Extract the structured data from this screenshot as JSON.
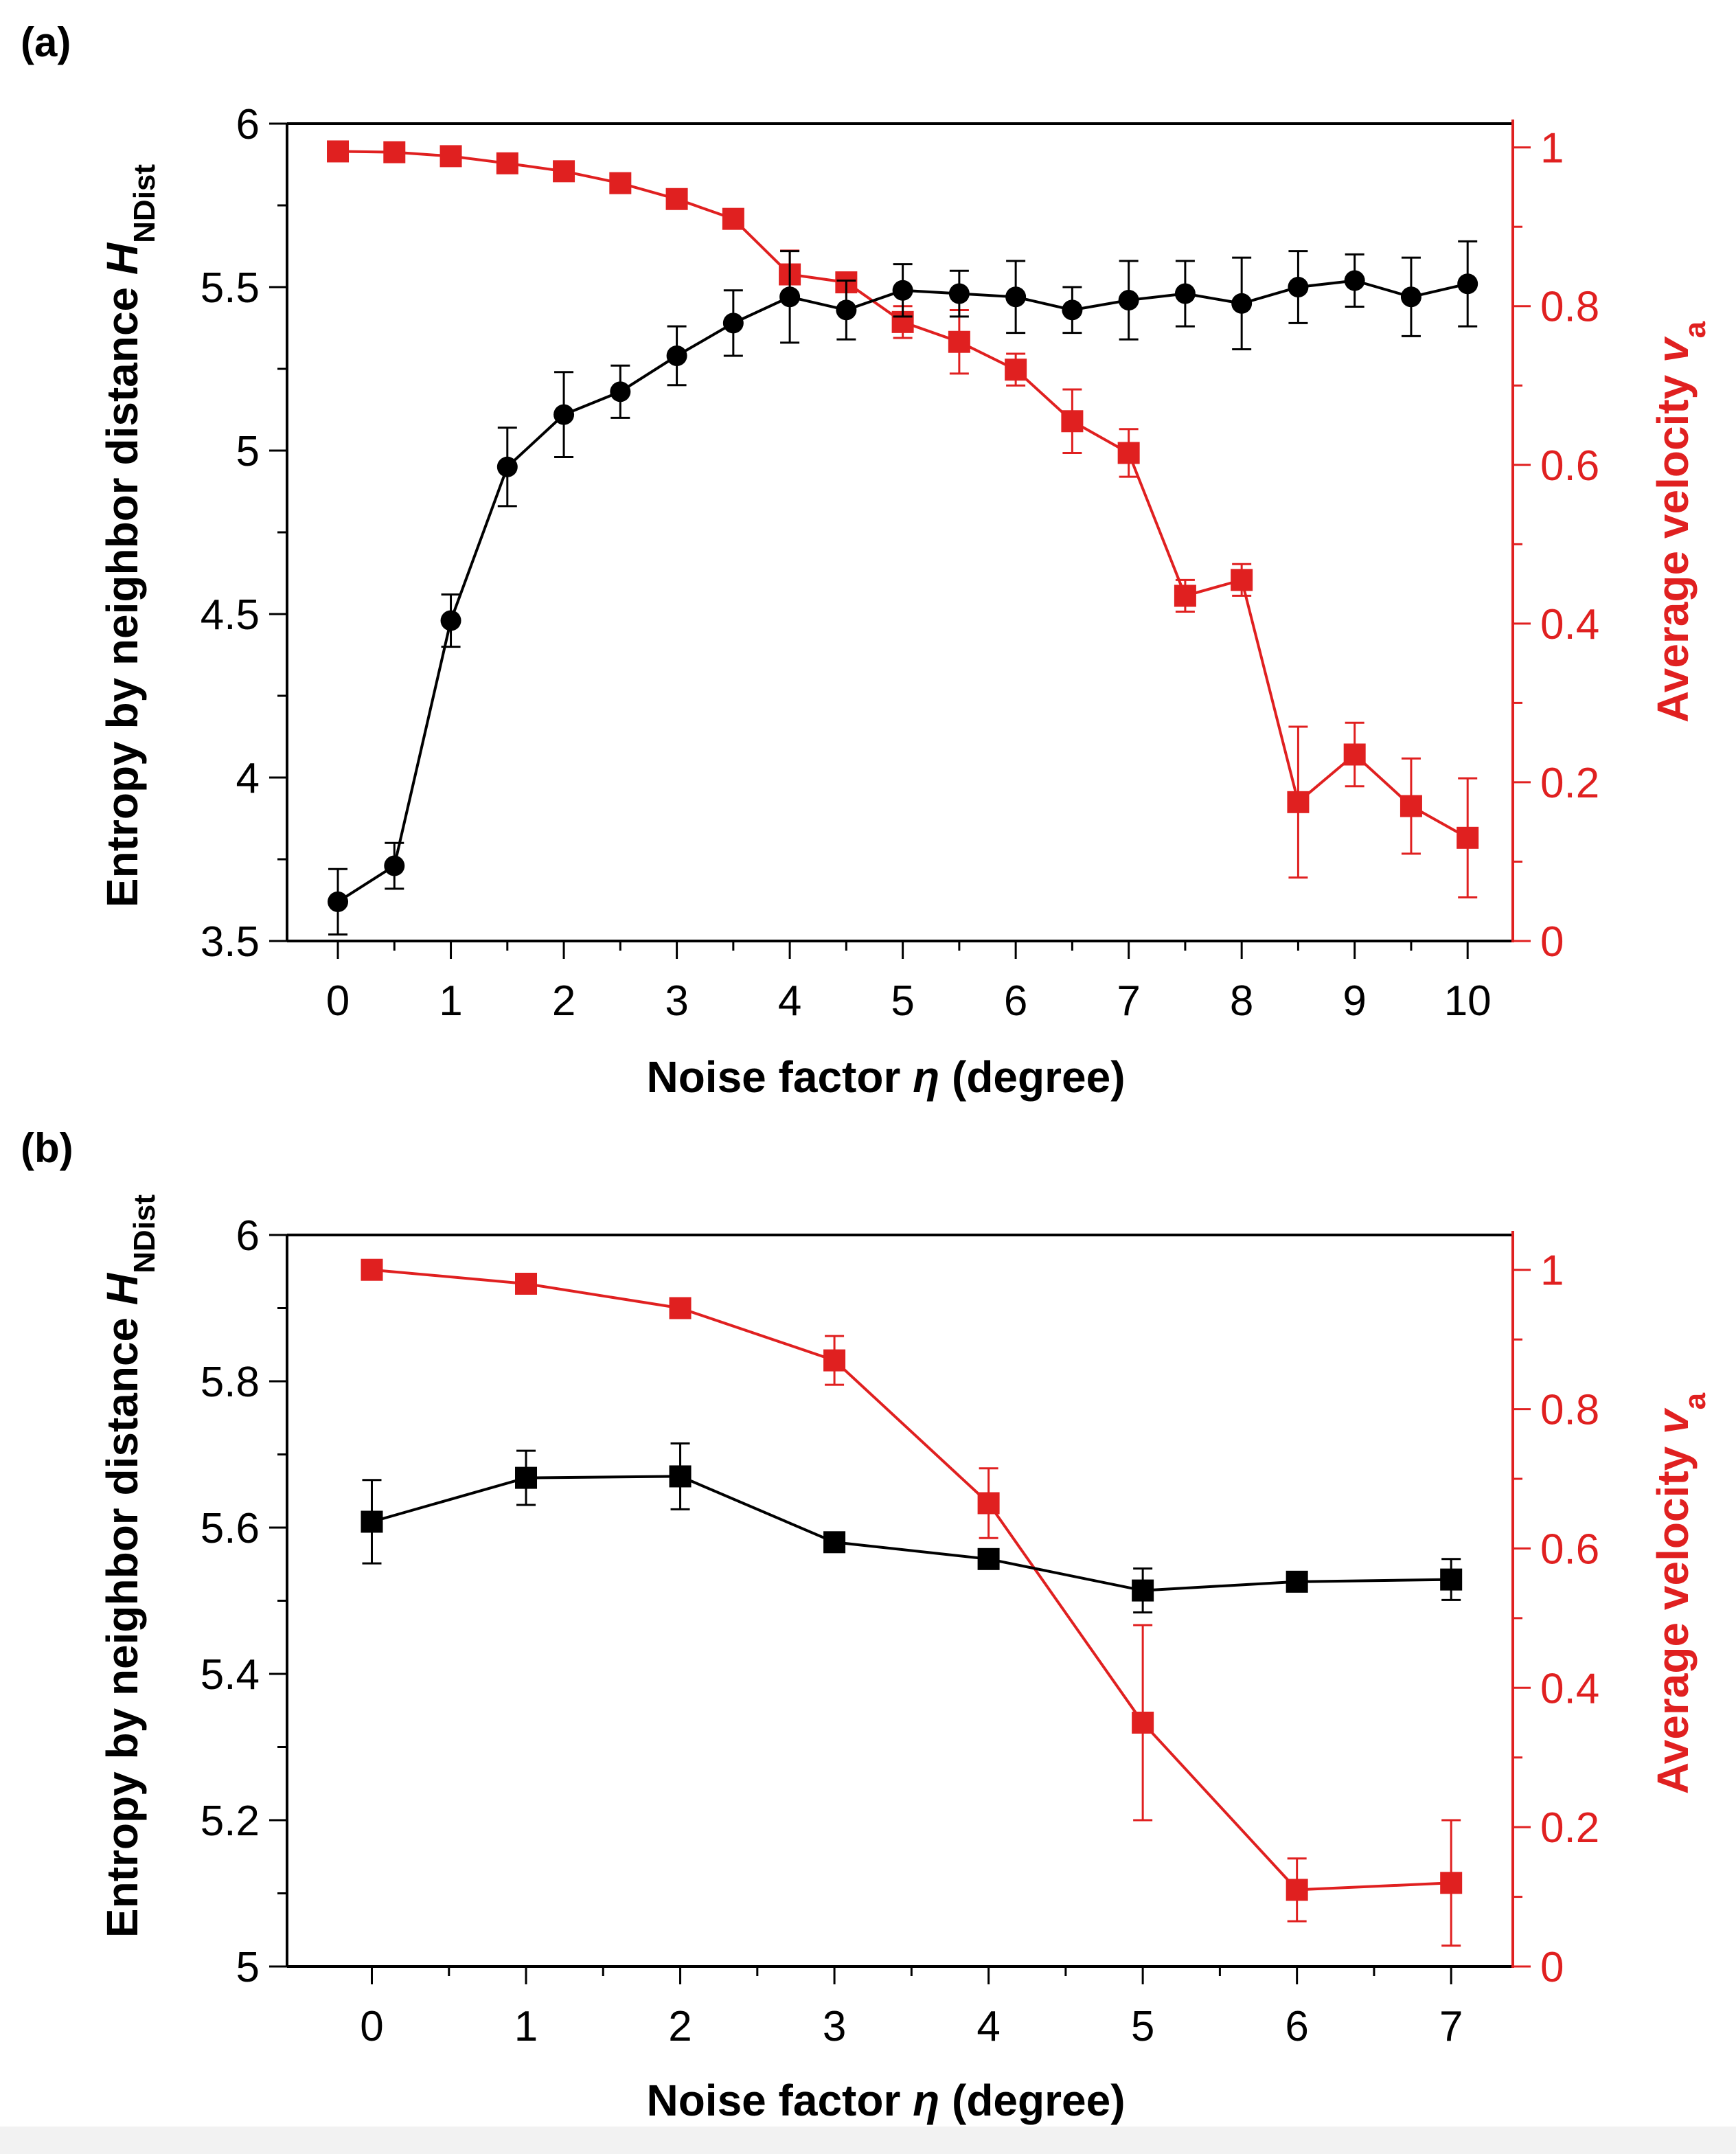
{
  "colors": {
    "left": "#000000",
    "right": "#e02020",
    "axis": "#000000"
  },
  "chart_data": [
    {
      "panel": "(a)",
      "type": "line",
      "xlabel": {
        "prefix": "Noise factor ",
        "symbol": "η",
        "suffix": " (degree)"
      },
      "ylabel": {
        "prefix": "Entropy by neighbor distance ",
        "symbol": "H",
        "sub": "NDist"
      },
      "y2label": {
        "prefix": "Average velocity ",
        "symbol": "v",
        "sub": "a"
      },
      "xlim": [
        -0.45,
        10.4
      ],
      "ylim": [
        3.5,
        6.0
      ],
      "y2lim": [
        0,
        1.03
      ],
      "xticks": [
        0,
        1,
        2,
        3,
        4,
        5,
        6,
        7,
        8,
        9,
        10
      ],
      "xtick_labels": [
        "0",
        "1",
        "2",
        "3",
        "4",
        "5",
        "6",
        "7",
        "8",
        "9",
        "10"
      ],
      "xminor": [
        0.5,
        1.5,
        2.5,
        3.5,
        4.5,
        5.5,
        6.5,
        7.5,
        8.5,
        9.5
      ],
      "yticks": [
        3.5,
        4,
        4.5,
        5,
        5.5,
        6
      ],
      "ytick_labels": [
        "3.5",
        "4",
        "4.5",
        "5",
        "5.5",
        "6"
      ],
      "yminor": [
        3.75,
        4.25,
        4.75,
        5.25,
        5.75
      ],
      "y2ticks": [
        0,
        0.2,
        0.4,
        0.6,
        0.8,
        1
      ],
      "y2tick_labels": [
        "0",
        "0.2",
        "0.4",
        "0.6",
        "0.8",
        "1"
      ],
      "y2minor": [
        0.1,
        0.3,
        0.5,
        0.7,
        0.9
      ],
      "series": [
        {
          "name": "Entropy",
          "axis": "left",
          "marker": "circle",
          "x": [
            0,
            0.5,
            1,
            1.5,
            2,
            2.5,
            3,
            3.5,
            4,
            4.5,
            5,
            5.5,
            6,
            6.5,
            7,
            7.5,
            8,
            8.5,
            9,
            9.5,
            10
          ],
          "y": [
            3.62,
            3.73,
            4.48,
            4.95,
            5.11,
            5.18,
            5.29,
            5.39,
            5.47,
            5.43,
            5.49,
            5.48,
            5.47,
            5.43,
            5.46,
            5.48,
            5.45,
            5.5,
            5.52,
            5.47,
            5.51
          ],
          "err": [
            0.1,
            0.07,
            0.08,
            0.12,
            0.13,
            0.08,
            0.09,
            0.1,
            0.14,
            0.09,
            0.08,
            0.07,
            0.11,
            0.07,
            0.12,
            0.1,
            0.14,
            0.11,
            0.08,
            0.12,
            0.13
          ]
        },
        {
          "name": "Average velocity",
          "axis": "right",
          "marker": "square",
          "x": [
            0,
            0.5,
            1,
            1.5,
            2,
            2.5,
            3,
            3.5,
            4,
            4.5,
            5,
            5.5,
            6,
            6.5,
            7,
            7.5,
            8,
            8.5,
            9,
            9.5,
            10
          ],
          "y": [
            0.995,
            0.994,
            0.989,
            0.98,
            0.97,
            0.955,
            0.935,
            0.91,
            0.84,
            0.83,
            0.78,
            0.755,
            0.72,
            0.655,
            0.615,
            0.435,
            0.455,
            0.175,
            0.235,
            0.17,
            0.13
          ],
          "err": [
            0.0,
            0.0,
            0.0,
            0.0,
            0.0,
            0.0,
            0.0,
            0.0,
            0.03,
            0.0,
            0.02,
            0.04,
            0.02,
            0.04,
            0.03,
            0.02,
            0.02,
            0.095,
            0.04,
            0.06,
            0.075
          ]
        }
      ]
    },
    {
      "panel": "(b)",
      "type": "line",
      "xlabel": {
        "prefix": "Noise factor ",
        "symbol": "η",
        "suffix": " (degree)"
      },
      "ylabel": {
        "prefix": "Entropy by neighbor distance ",
        "symbol": "H",
        "sub": "NDist"
      },
      "y2label": {
        "prefix": "Average velocity ",
        "symbol": "v",
        "sub": "a"
      },
      "xlim": [
        -0.55,
        7.4
      ],
      "ylim": [
        5.0,
        6.0
      ],
      "y2lim": [
        0,
        1.05
      ],
      "xticks": [
        0,
        1,
        2,
        3,
        4,
        5,
        6,
        7
      ],
      "xtick_labels": [
        "0",
        "1",
        "2",
        "3",
        "4",
        "5",
        "6",
        "7"
      ],
      "xminor": [
        0.5,
        1.5,
        2.5,
        3.5,
        4.5,
        5.5,
        6.5
      ],
      "yticks": [
        5.0,
        5.2,
        5.4,
        5.6,
        5.8,
        6.0
      ],
      "ytick_labels": [
        "5",
        "5.2",
        "5.4",
        "5.6",
        "5.8",
        "6"
      ],
      "yminor": [
        5.1,
        5.3,
        5.5,
        5.7,
        5.9
      ],
      "y2ticks": [
        0,
        0.2,
        0.4,
        0.6,
        0.8,
        1
      ],
      "y2tick_labels": [
        "0",
        "0.2",
        "0.4",
        "0.6",
        "0.8",
        "1"
      ],
      "y2minor": [
        0.1,
        0.3,
        0.5,
        0.7,
        0.9
      ],
      "series": [
        {
          "name": "Entropy",
          "axis": "left",
          "marker": "square",
          "x": [
            0,
            1,
            2,
            3,
            4,
            5,
            6,
            7
          ],
          "y": [
            5.608,
            5.668,
            5.67,
            5.58,
            5.557,
            5.514,
            5.526,
            5.529
          ],
          "err": [
            0.057,
            0.037,
            0.045,
            0.0,
            0.0,
            0.03,
            0.0,
            0.028
          ]
        },
        {
          "name": "Average velocity",
          "axis": "right",
          "marker": "square",
          "x": [
            0,
            1,
            2,
            3,
            4,
            5,
            6,
            7
          ],
          "y": [
            1.0,
            0.98,
            0.945,
            0.87,
            0.665,
            0.35,
            0.11,
            0.12
          ],
          "err": [
            0.0,
            0.0,
            0.0,
            0.035,
            0.05,
            0.14,
            0.045,
            0.09
          ]
        }
      ]
    }
  ]
}
